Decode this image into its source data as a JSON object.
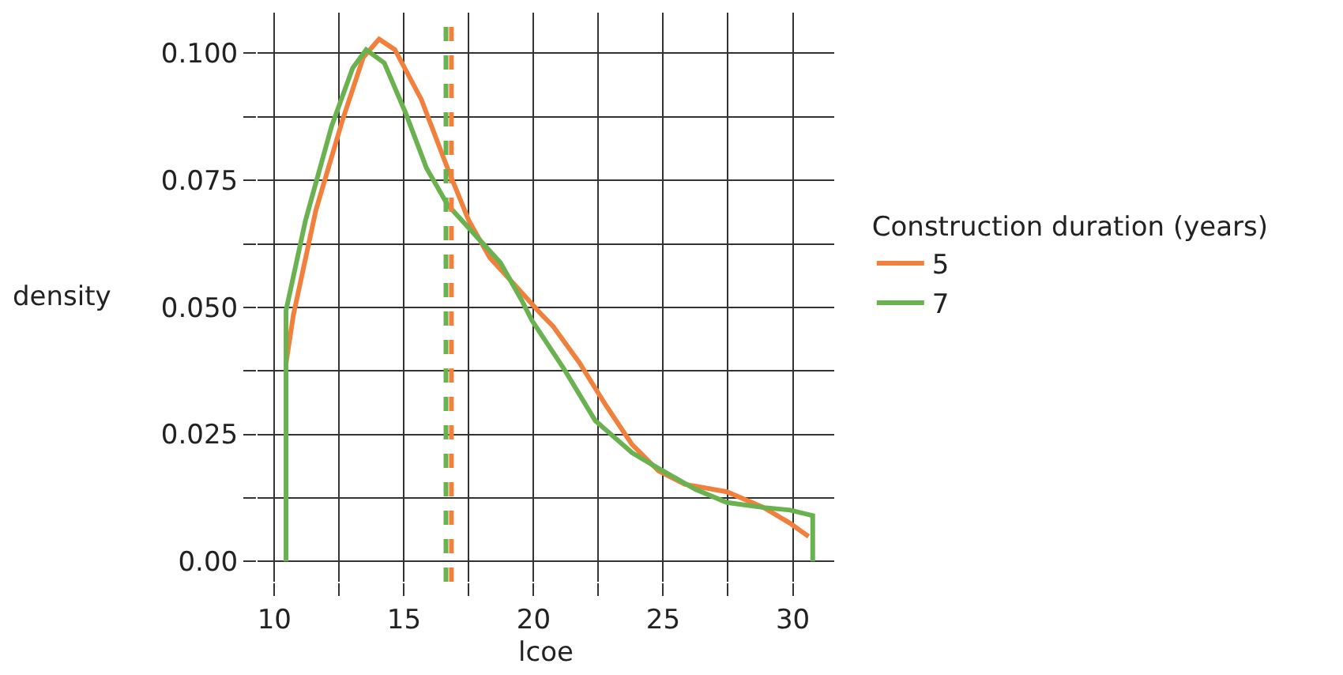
{
  "chart_data": {
    "type": "line",
    "xlabel": "lcoe",
    "ylabel": "density",
    "legend_title": "Construction duration (years)",
    "series": [
      {
        "name": "5",
        "color": "#f0803c",
        "x": [
          10.45,
          10.73,
          11.6,
          12.62,
          13.43,
          14.04,
          14.65,
          15.67,
          16.68,
          17.5,
          18.31,
          19.33,
          20.34,
          20.75,
          21.77,
          22.78,
          23.8,
          24.82,
          25.83,
          27.46,
          28.88,
          29.9,
          30.61
        ],
        "values": [
          0.039,
          0.0484,
          0.0691,
          0.0867,
          0.0992,
          0.1028,
          0.1007,
          0.0909,
          0.0774,
          0.0671,
          0.0598,
          0.0541,
          0.0484,
          0.0463,
          0.0391,
          0.0308,
          0.023,
          0.0178,
          0.0152,
          0.0137,
          0.0106,
          0.0075,
          0.0049
        ]
      },
      {
        "name": "7",
        "color": "#6ab150",
        "x": [
          10.45,
          10.45,
          11.2,
          12.21,
          13.02,
          13.54,
          14.24,
          15.06,
          15.87,
          16.68,
          17.7,
          18.72,
          19.53,
          19.94,
          21.16,
          22.38,
          23.8,
          24.82,
          26.24,
          27.46,
          28.88,
          29.9,
          30.77,
          30.77
        ],
        "values": [
          0,
          0.0494,
          0.0671,
          0.0857,
          0.0971,
          0.1007,
          0.0981,
          0.0883,
          0.0774,
          0.0702,
          0.0645,
          0.0588,
          0.0515,
          0.0474,
          0.038,
          0.0277,
          0.0214,
          0.0183,
          0.0142,
          0.0116,
          0.0106,
          0.0101,
          0.009,
          0
        ]
      }
    ],
    "ref_lines": [
      {
        "axis": "x",
        "value": 16.62,
        "color": "#6ab150",
        "line_style": "dashed"
      },
      {
        "axis": "x",
        "value": 16.83,
        "color": "#f0803c",
        "line_style": "dashed"
      }
    ],
    "xlim": [
      9.35,
      31.6
    ],
    "ylim": [
      -0.004,
      0.108
    ],
    "xticks": [
      10,
      {
        "value": 12.5,
        "label": null
      },
      15,
      {
        "value": 17.5,
        "label": null
      },
      20,
      {
        "value": 22.5,
        "label": null
      },
      25,
      {
        "value": 27.5,
        "label": null
      },
      30
    ],
    "yticks": [
      {
        "value": 0,
        "label": "0.00"
      },
      {
        "value": 0.0125,
        "label": null
      },
      {
        "value": 0.025,
        "label": "0.025"
      },
      {
        "value": 0.0375,
        "label": null
      },
      {
        "value": 0.05,
        "label": "0.050"
      },
      {
        "value": 0.0625,
        "label": null
      },
      {
        "value": 0.075,
        "label": "0.075"
      },
      {
        "value": 0.0875,
        "label": null
      },
      {
        "value": 0.1,
        "label": "0.100"
      }
    ],
    "grid": true,
    "legend": "right"
  }
}
